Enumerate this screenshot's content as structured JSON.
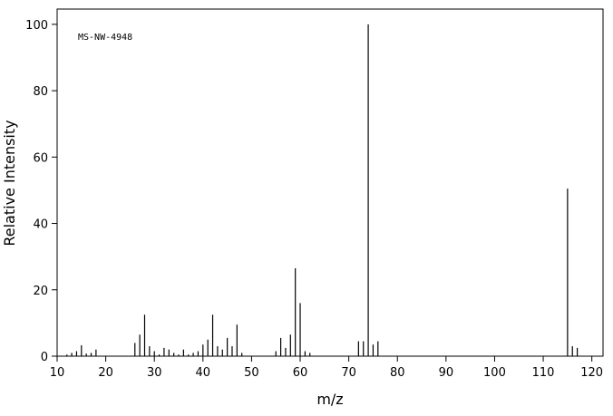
{
  "chart_data": {
    "type": "stem",
    "annotation": "MS-NW-4948",
    "x_label": "m/z",
    "y_label": "Relative Intensity",
    "x": [
      12,
      13,
      14,
      15,
      16,
      17,
      18,
      26,
      27,
      28,
      29,
      30,
      31,
      32,
      33,
      34,
      35,
      36,
      37,
      38,
      39,
      40,
      41,
      42,
      43,
      44,
      45,
      46,
      47,
      48,
      55,
      56,
      57,
      58,
      59,
      60,
      61,
      62,
      72,
      73,
      74,
      75,
      76,
      115,
      116,
      117
    ],
    "values": [
      0.5,
      1,
      1.5,
      3.3,
      0.8,
      1,
      2,
      4,
      6.5,
      12.5,
      3,
      1.5,
      0.5,
      2.5,
      2,
      1,
      0.5,
      2,
      0.5,
      1,
      1.5,
      3.5,
      5,
      12.5,
      3,
      2,
      5.5,
      3,
      9.5,
      1,
      1.5,
      5.5,
      2.5,
      6.5,
      26.5,
      16,
      1.5,
      1,
      4.5,
      4.5,
      100,
      3.5,
      4.5,
      50.5,
      3,
      2.5
    ],
    "color": "#000000",
    "xlim": [
      10,
      122.3
    ],
    "ylim": [
      0,
      104.6
    ],
    "xticks": [
      10,
      20,
      30,
      40,
      50,
      60,
      70,
      80,
      90,
      100,
      110,
      120
    ],
    "yticks": [
      0,
      20,
      40,
      60,
      80,
      100
    ]
  }
}
